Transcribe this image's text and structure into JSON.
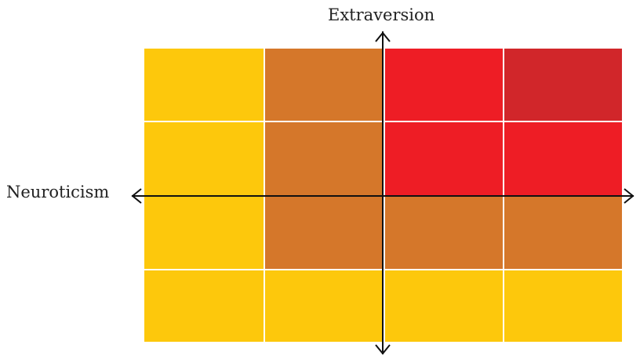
{
  "diagram": {
    "x_axis_label": "Neuroticism",
    "y_axis_label": "Extraversion",
    "grid": {
      "rows": 4,
      "cols": 4,
      "palette": {
        "yellow": "#fdc80c",
        "orange": "#d5772a",
        "red": "#ee1d25",
        "dark-red": "#d1262a"
      },
      "cells": [
        [
          "yellow",
          "orange",
          "red",
          "dark-red"
        ],
        [
          "yellow",
          "orange",
          "red",
          "red"
        ],
        [
          "yellow",
          "orange",
          "orange",
          "orange"
        ],
        [
          "yellow",
          "yellow",
          "yellow",
          "yellow"
        ]
      ]
    }
  }
}
